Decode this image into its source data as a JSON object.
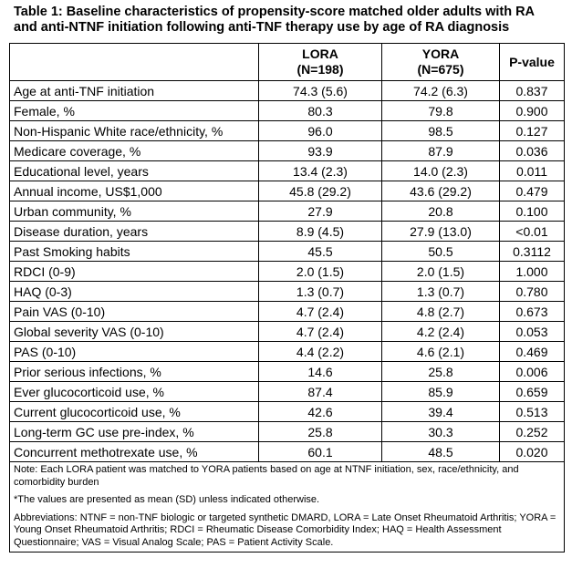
{
  "title": "Table 1: Baseline characteristics of propensity-score matched older adults with RA and anti-NTNF initiation following anti-TNF therapy use by age of RA diagnosis",
  "headers": {
    "variable": "",
    "lora": "LORA",
    "lora_n": "(N=198)",
    "yora": "YORA",
    "yora_n": "(N=675)",
    "pvalue": "P-value"
  },
  "rows": [
    {
      "label": "Age at anti-TNF initiation",
      "lora": "74.3 (5.6)",
      "yora": "74.2 (6.3)",
      "p": "0.837"
    },
    {
      "label": "Female, %",
      "lora": "80.3",
      "yora": "79.8",
      "p": "0.900"
    },
    {
      "label": "Non-Hispanic White race/ethnicity, %",
      "lora": "96.0",
      "yora": "98.5",
      "p": "0.127"
    },
    {
      "label": "Medicare coverage, %",
      "lora": "93.9",
      "yora": "87.9",
      "p": "0.036"
    },
    {
      "label": "Educational level, years",
      "lora": "13.4 (2.3)",
      "yora": "14.0 (2.3)",
      "p": "0.011"
    },
    {
      "label": "Annual income, US$1,000",
      "lora": "45.8 (29.2)",
      "yora": "43.6 (29.2)",
      "p": "0.479"
    },
    {
      "label": "Urban community, %",
      "lora": "27.9",
      "yora": "20.8",
      "p": "0.100"
    },
    {
      "label": "Disease duration, years",
      "lora": "8.9 (4.5)",
      "yora": "27.9 (13.0)",
      "p": "<0.01"
    },
    {
      "label": "Past Smoking habits",
      "lora": "45.5",
      "yora": "50.5",
      "p": "0.3112"
    },
    {
      "label": "RDCI (0-9)",
      "lora": "2.0 (1.5)",
      "yora": "2.0 (1.5)",
      "p": "1.000"
    },
    {
      "label": "HAQ (0-3)",
      "lora": "1.3 (0.7)",
      "yora": "1.3 (0.7)",
      "p": "0.780"
    },
    {
      "label": "Pain VAS (0-10)",
      "lora": "4.7 (2.4)",
      "yora": "4.8 (2.7)",
      "p": "0.673"
    },
    {
      "label": "Global severity VAS (0-10)",
      "lora": "4.7 (2.4)",
      "yora": "4.2 (2.4)",
      "p": "0.053"
    },
    {
      "label": "PAS (0-10)",
      "lora": "4.4 (2.2)",
      "yora": "4.6 (2.1)",
      "p": "0.469"
    },
    {
      "label": "Prior serious infections, %",
      "lora": "14.6",
      "yora": "25.8",
      "p": "0.006"
    },
    {
      "label": "Ever glucocorticoid use, %",
      "lora": "87.4",
      "yora": "85.9",
      "p": "0.659"
    },
    {
      "label": "Current glucocorticoid use, %",
      "lora": "42.6",
      "yora": "39.4",
      "p": "0.513"
    },
    {
      "label": "Long-term GC use pre-index, %",
      "lora": "25.8",
      "yora": "30.3",
      "p": "0.252"
    },
    {
      "label": "Concurrent methotrexate use, %",
      "lora": "60.1",
      "yora": "48.5",
      "p": "0.020"
    }
  ],
  "notes": [
    "Note: Each LORA patient was matched to YORA patients based on age at NTNF initiation, sex, race/ethnicity, and comorbidity burden",
    "*The values are presented as mean (SD) unless indicated otherwise.",
    "Abbreviations: NTNF = non-TNF biologic or targeted synthetic DMARD, LORA = Late Onset Rheumatoid Arthritis; YORA = Young Onset Rheumatoid Arthritis; RDCI = Rheumatic Disease Comorbidity Index; HAQ = Health Assessment Questionnaire; VAS = Visual Analog Scale; PAS = Patient Activity Scale."
  ]
}
